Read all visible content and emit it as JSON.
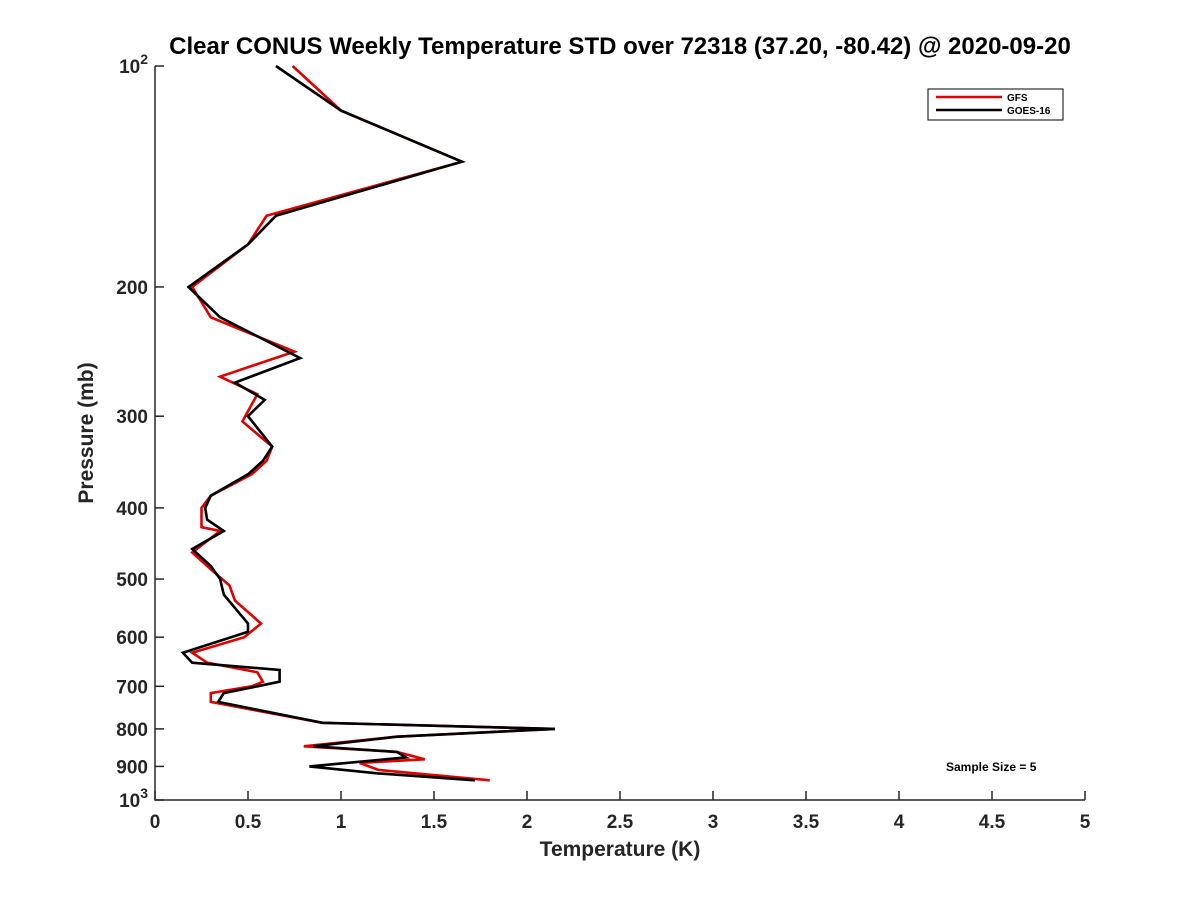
{
  "chart_data": {
    "type": "line",
    "title": "Clear CONUS Weekly Temperature STD over 72318 (37.20, -80.42) @ 2020-09-20",
    "xlabel": "Temperature (K)",
    "ylabel": "Pressure (mb)",
    "xlim": [
      0,
      5
    ],
    "ylim": [
      100,
      1000
    ],
    "y_scale": "log",
    "y_reversed": true,
    "grid": false,
    "legend_position": "top-right",
    "x_ticks": [
      0,
      0.5,
      1,
      1.5,
      2,
      2.5,
      3,
      3.5,
      4,
      4.5,
      5
    ],
    "x_tick_labels": [
      "0",
      "0.5",
      "1",
      "1.5",
      "2",
      "2.5",
      "3",
      "3.5",
      "4",
      "4.5",
      "5"
    ],
    "y_ticks": [
      {
        "value": 100,
        "base": "10",
        "exp": "2"
      },
      {
        "value": 200,
        "label": "200"
      },
      {
        "value": 300,
        "label": "300"
      },
      {
        "value": 400,
        "label": "400"
      },
      {
        "value": 500,
        "label": "500"
      },
      {
        "value": 600,
        "label": "600"
      },
      {
        "value": 700,
        "label": "700"
      },
      {
        "value": 800,
        "label": "800"
      },
      {
        "value": 900,
        "label": "900"
      },
      {
        "value": 1000,
        "base": "10",
        "exp": "3"
      }
    ],
    "annotation": "Sample Size = 5",
    "series": [
      {
        "name": "GFS",
        "color": "#e00000",
        "points": [
          [
            0.74,
            100
          ],
          [
            1.0,
            115
          ],
          [
            1.65,
            135
          ],
          [
            0.6,
            160
          ],
          [
            0.5,
            175
          ],
          [
            0.2,
            200
          ],
          [
            0.3,
            220
          ],
          [
            0.75,
            245
          ],
          [
            0.35,
            265
          ],
          [
            0.55,
            280
          ],
          [
            0.47,
            305
          ],
          [
            0.63,
            330
          ],
          [
            0.6,
            345
          ],
          [
            0.52,
            360
          ],
          [
            0.3,
            385
          ],
          [
            0.25,
            400
          ],
          [
            0.25,
            425
          ],
          [
            0.35,
            430
          ],
          [
            0.2,
            460
          ],
          [
            0.3,
            485
          ],
          [
            0.4,
            510
          ],
          [
            0.43,
            535
          ],
          [
            0.57,
            575
          ],
          [
            0.48,
            600
          ],
          [
            0.2,
            630
          ],
          [
            0.28,
            650
          ],
          [
            0.55,
            670
          ],
          [
            0.58,
            690
          ],
          [
            0.52,
            700
          ],
          [
            0.3,
            715
          ],
          [
            0.3,
            735
          ],
          [
            0.9,
            785
          ],
          [
            2.15,
            800
          ],
          [
            1.3,
            820
          ],
          [
            0.8,
            845
          ],
          [
            1.3,
            860
          ],
          [
            1.45,
            880
          ],
          [
            1.1,
            890
          ],
          [
            1.2,
            910
          ],
          [
            1.8,
            940
          ]
        ]
      },
      {
        "name": "GOES-16",
        "color": "#000000",
        "points": [
          [
            0.65,
            100
          ],
          [
            1.0,
            115
          ],
          [
            1.65,
            135
          ],
          [
            0.65,
            160
          ],
          [
            0.5,
            175
          ],
          [
            0.18,
            200
          ],
          [
            0.35,
            220
          ],
          [
            0.78,
            250
          ],
          [
            0.43,
            270
          ],
          [
            0.59,
            285
          ],
          [
            0.5,
            300
          ],
          [
            0.63,
            330
          ],
          [
            0.58,
            345
          ],
          [
            0.5,
            360
          ],
          [
            0.3,
            385
          ],
          [
            0.27,
            400
          ],
          [
            0.28,
            415
          ],
          [
            0.37,
            430
          ],
          [
            0.2,
            455
          ],
          [
            0.3,
            480
          ],
          [
            0.35,
            500
          ],
          [
            0.37,
            525
          ],
          [
            0.5,
            575
          ],
          [
            0.5,
            590
          ],
          [
            0.15,
            630
          ],
          [
            0.2,
            650
          ],
          [
            0.67,
            665
          ],
          [
            0.67,
            690
          ],
          [
            0.55,
            700
          ],
          [
            0.37,
            715
          ],
          [
            0.34,
            735
          ],
          [
            0.9,
            785
          ],
          [
            2.15,
            800
          ],
          [
            1.3,
            820
          ],
          [
            0.85,
            845
          ],
          [
            1.3,
            860
          ],
          [
            1.35,
            875
          ],
          [
            0.83,
            900
          ],
          [
            1.2,
            920
          ],
          [
            1.72,
            940
          ]
        ]
      }
    ]
  }
}
